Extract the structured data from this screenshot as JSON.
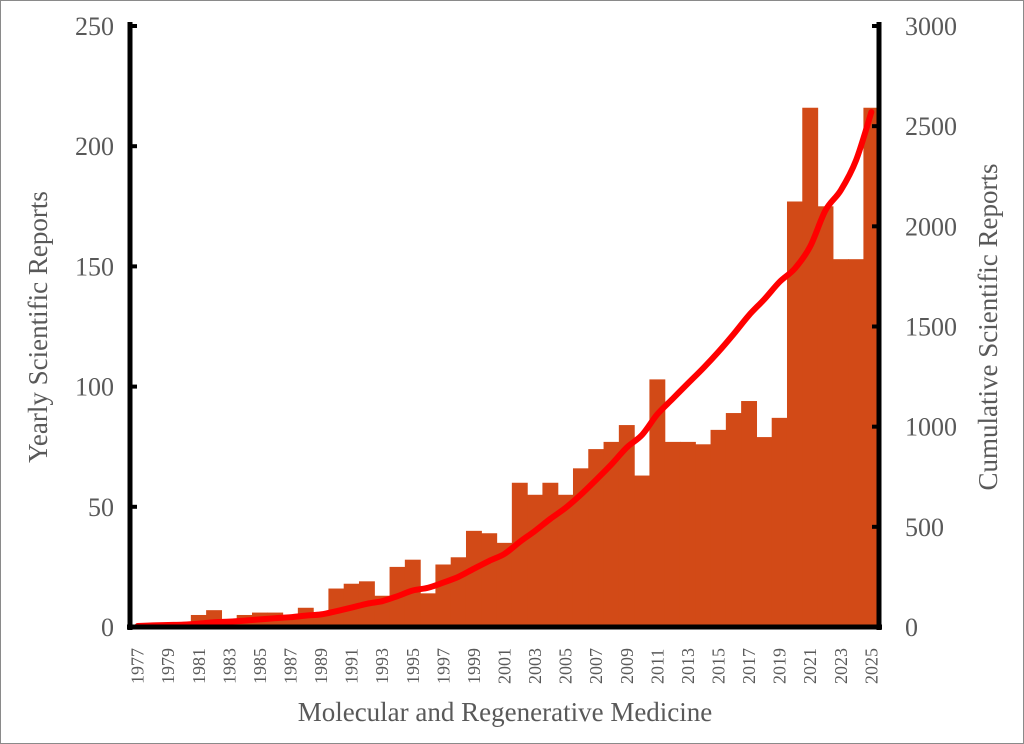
{
  "chart_data": {
    "type": "bar",
    "xlabel": "Molecular and Regenerative Medicine",
    "ylabel": "Yearly Scientific Reports",
    "y2label": "Cumulative Scientific Reports",
    "ylim": [
      0,
      250
    ],
    "y2lim": [
      0,
      3000
    ],
    "yticks": [
      0,
      50,
      100,
      150,
      200,
      250
    ],
    "y2ticks": [
      0,
      500,
      1000,
      1500,
      2000,
      2500,
      3000
    ],
    "grid": false,
    "categories": [
      1977,
      1978,
      1979,
      1980,
      1981,
      1982,
      1983,
      1984,
      1985,
      1986,
      1987,
      1988,
      1989,
      1990,
      1991,
      1992,
      1993,
      1994,
      1995,
      1996,
      1997,
      1998,
      1999,
      2000,
      2001,
      2002,
      2003,
      2004,
      2005,
      2006,
      2007,
      2008,
      2009,
      2010,
      2011,
      2012,
      2013,
      2014,
      2015,
      2016,
      2017,
      2018,
      2019,
      2020,
      2021,
      2022,
      2023,
      2024,
      2025
    ],
    "xticklabels": [
      "1977",
      "1979",
      "1981",
      "1983",
      "1985",
      "1987",
      "1989",
      "1991",
      "1993",
      "1995",
      "1997",
      "1999",
      "2001",
      "2003",
      "2005",
      "2007",
      "2009",
      "2011",
      "2013",
      "2015",
      "2017",
      "2019",
      "2021",
      "2023",
      "2025"
    ],
    "series": [
      {
        "kind": "bar",
        "axis": "left",
        "color": "#d24a17",
        "values": [
          1,
          1,
          1,
          2,
          5,
          7,
          3,
          5,
          6,
          6,
          5,
          8,
          6,
          16,
          18,
          19,
          13,
          25,
          28,
          14,
          26,
          29,
          40,
          39,
          35,
          60,
          55,
          60,
          55,
          66,
          74,
          77,
          84,
          63,
          103,
          77,
          77,
          76,
          82,
          89,
          94,
          79,
          87,
          177,
          216,
          175,
          153,
          153,
          216
        ]
      },
      {
        "kind": "line",
        "axis": "right",
        "color": "#ff0000",
        "values": [
          5,
          8,
          10,
          12,
          17,
          24,
          27,
          32,
          38,
          44,
          49,
          57,
          63,
          79,
          97,
          116,
          129,
          154,
          182,
          196,
          222,
          251,
          291,
          330,
          365,
          425,
          480,
          540,
          595,
          661,
          735,
          812,
          896,
          959,
          1062,
          1139,
          1216,
          1292,
          1374,
          1463,
          1557,
          1636,
          1723,
          1790,
          1900,
          2080,
          2180,
          2330,
          2570
        ]
      }
    ]
  }
}
